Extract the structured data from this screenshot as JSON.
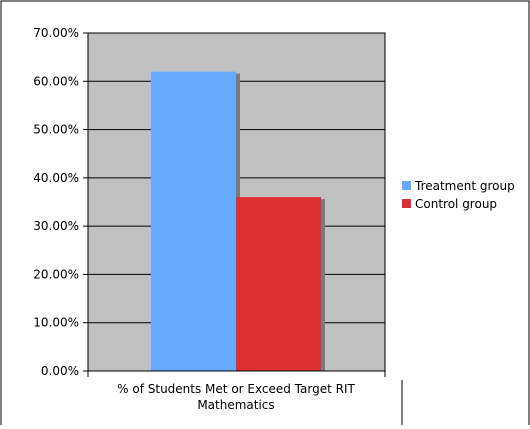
{
  "chart_data": {
    "type": "bar",
    "categories": [
      "% of Students Met or Exceed Target RIT Mathematics"
    ],
    "category_label_lines": [
      "% of Students Met or Exceed Target RIT",
      "Mathematics"
    ],
    "series": [
      {
        "name": "Treatment group",
        "values": [
          62.0
        ],
        "color": "#66aaff"
      },
      {
        "name": "Control group",
        "values": [
          36.0
        ],
        "color": "#dd2e33"
      }
    ],
    "ylim": [
      0,
      70
    ],
    "yticks": [
      0,
      10,
      20,
      30,
      40,
      50,
      60,
      70
    ],
    "ytick_labels": [
      "0.00%",
      "10.00%",
      "20.00%",
      "30.00%",
      "40.00%",
      "50.00%",
      "60.00%",
      "70.00%"
    ],
    "plot_background": "#c0c0c0",
    "grid": true,
    "legend_position": "right",
    "title": "",
    "xlabel": "",
    "ylabel": ""
  }
}
